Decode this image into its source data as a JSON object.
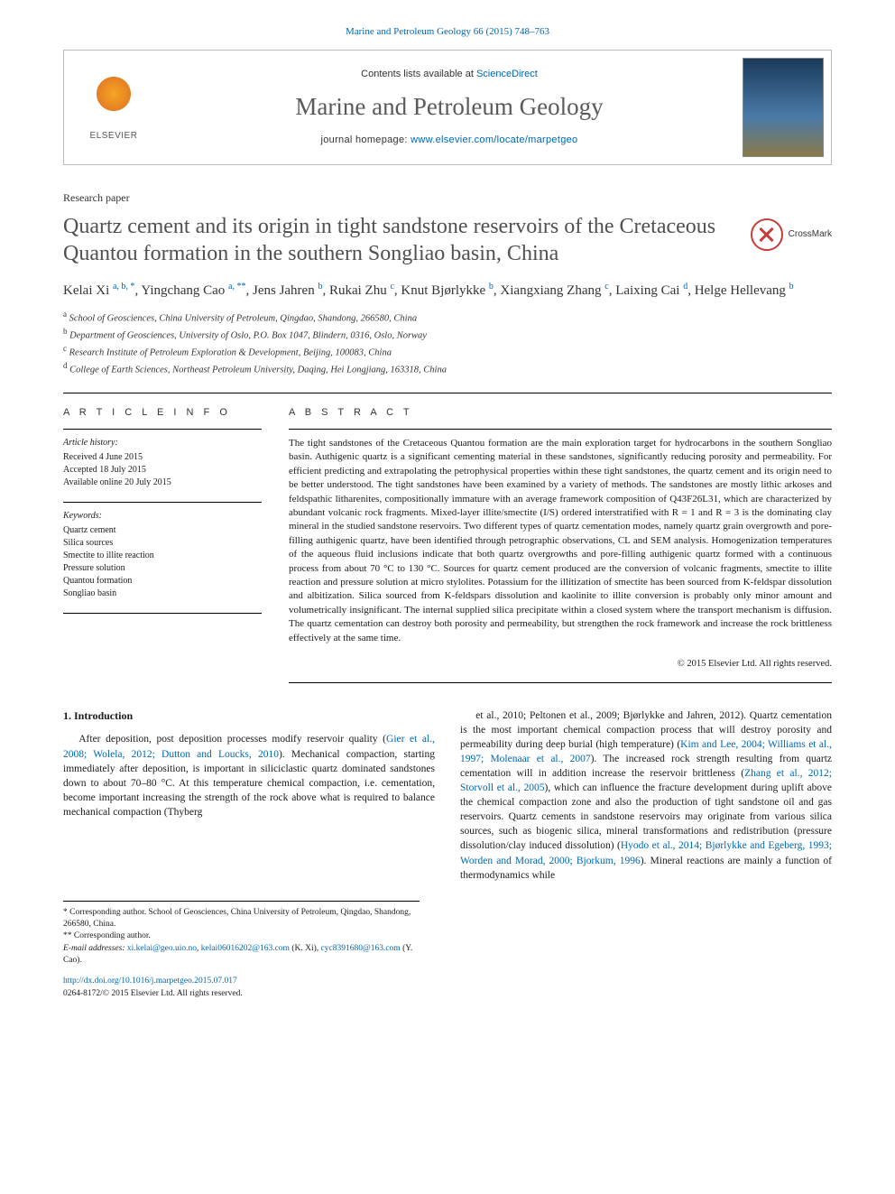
{
  "topLink": {
    "journalRef": "Marine and Petroleum Geology 66 (2015) 748–763"
  },
  "header": {
    "publisher": "ELSEVIER",
    "contentsPrefix": "Contents lists available at ",
    "contentsLink": "ScienceDirect",
    "journalName": "Marine and Petroleum Geology",
    "homepagePrefix": "journal homepage: ",
    "homepageUrl": "www.elsevier.com/locate/marpetgeo"
  },
  "crossmark": {
    "label": "CrossMark"
  },
  "article": {
    "type": "Research paper",
    "title": "Quartz cement and its origin in tight sandstone reservoirs of the Cretaceous Quantou formation in the southern Songliao basin, China"
  },
  "authors": [
    {
      "name": "Kelai Xi",
      "aff": "a, b, *"
    },
    {
      "name": "Yingchang Cao",
      "aff": "a, **"
    },
    {
      "name": "Jens Jahren",
      "aff": "b"
    },
    {
      "name": "Rukai Zhu",
      "aff": "c"
    },
    {
      "name": "Knut Bjørlykke",
      "aff": "b"
    },
    {
      "name": "Xiangxiang Zhang",
      "aff": "c"
    },
    {
      "name": "Laixing Cai",
      "aff": "d"
    },
    {
      "name": "Helge Hellevang",
      "aff": "b"
    }
  ],
  "affiliations": [
    {
      "key": "a",
      "text": "School of Geosciences, China University of Petroleum, Qingdao, Shandong, 266580, China"
    },
    {
      "key": "b",
      "text": "Department of Geosciences, University of Oslo, P.O. Box 1047, Blindern, 0316, Oslo, Norway"
    },
    {
      "key": "c",
      "text": "Research Institute of Petroleum Exploration & Development, Beijing, 100083, China"
    },
    {
      "key": "d",
      "text": "College of Earth Sciences, Northeast Petroleum University, Daqing, Hei Longjiang, 163318, China"
    }
  ],
  "info": {
    "heading": "A R T I C L E   I N F O",
    "historyLabel": "Article history:",
    "history": [
      "Received 4 June 2015",
      "Accepted 18 July 2015",
      "Available online 20 July 2015"
    ],
    "keywordsLabel": "Keywords:",
    "keywords": [
      "Quartz cement",
      "Silica sources",
      "Smectite to illite reaction",
      "Pressure solution",
      "Quantou formation",
      "Songliao basin"
    ]
  },
  "abstract": {
    "heading": "A B S T R A C T",
    "text": "The tight sandstones of the Cretaceous Quantou formation are the main exploration target for hydrocarbons in the southern Songliao basin. Authigenic quartz is a significant cementing material in these sandstones, significantly reducing porosity and permeability. For efficient predicting and extrapolating the petrophysical properties within these tight sandstones, the quartz cement and its origin need to be better understood. The tight sandstones have been examined by a variety of methods. The sandstones are mostly lithic arkoses and feldspathic litharenites, compositionally immature with an average framework composition of Q43F26L31, which are characterized by abundant volcanic rock fragments. Mixed-layer illite/smectite (I/S) ordered interstratified with R = 1 and R = 3 is the dominating clay mineral in the studied sandstone reservoirs. Two different types of quartz cementation modes, namely quartz grain overgrowth and pore-filling authigenic quartz, have been identified through petrographic observations, CL and SEM analysis. Homogenization temperatures of the aqueous fluid inclusions indicate that both quartz overgrowths and pore-filling authigenic quartz formed with a continuous process from about 70 °C to 130 °C. Sources for quartz cement produced are the conversion of volcanic fragments, smectite to illite reaction and pressure solution at micro stylolites. Potassium for the illitization of smectite has been sourced from K-feldspar dissolution and albitization. Silica sourced from K-feldspars dissolution and kaolinite to illite conversion is probably only minor amount and volumetrically insignificant. The internal supplied silica precipitate within a closed system where the transport mechanism is diffusion. The quartz cementation can destroy both porosity and permeability, but strengthen the rock framework and increase the rock brittleness effectively at the same time.",
    "copyright": "© 2015 Elsevier Ltd. All rights reserved."
  },
  "body": {
    "section1": {
      "heading": "1.  Introduction",
      "leftPara": "After deposition, post deposition processes modify reservoir quality (Gier et al., 2008; Wolela, 2012; Dutton and Loucks, 2010). Mechanical compaction, starting immediately after deposition, is important in siliciclastic quartz dominated sandstones down to about 70–80 °C. At this temperature chemical compaction, i.e. cementation, become important increasing the strength of the rock above what is required to balance mechanical compaction (Thyberg",
      "rightPara": "et al., 2010; Peltonen et al., 2009; Bjørlykke and Jahren, 2012). Quartz cementation is the most important chemical compaction process that will destroy porosity and permeability during deep burial (high temperature) (Kim and Lee, 2004; Williams et al., 1997; Molenaar et al., 2007). The increased rock strength resulting from quartz cementation will in addition increase the reservoir brittleness (Zhang et al., 2012; Storvoll et al., 2005), which can influence the fracture development during uplift above the chemical compaction zone and also the production of tight sandstone oil and gas reservoirs. Quartz cements in sandstone reservoirs may originate from various silica sources, such as biogenic silica, mineral transformations and redistribution (pressure dissolution/clay induced dissolution) (Hyodo et al., 2014; Bjørlykke and Egeberg, 1993; Worden and Morad, 2000; Bjorkum, 1996). Mineral reactions are mainly a function of thermodynamics while"
    }
  },
  "footnotes": {
    "corr1": "* Corresponding author. School of Geosciences, China University of Petroleum, Qingdao, Shandong, 266580, China.",
    "corr2": "** Corresponding author.",
    "emailsLabel": "E-mail addresses:",
    "email1": "xi.kelai@geo.uio.no",
    "email2": "kelai06016202@163.com",
    "emailOwner1": "(K. Xi),",
    "email3": "cyc8391680@163.com",
    "emailOwner2": "(Y. Cao)."
  },
  "doi": {
    "url": "http://dx.doi.org/10.1016/j.marpetgeo.2015.07.017",
    "issn": "0264-8172/© 2015 Elsevier Ltd. All rights reserved."
  },
  "colors": {
    "link": "#0066b3",
    "headerGray": "#5a5a5a",
    "titleGray": "#505050",
    "crossmarkRed": "#c83c3c"
  }
}
